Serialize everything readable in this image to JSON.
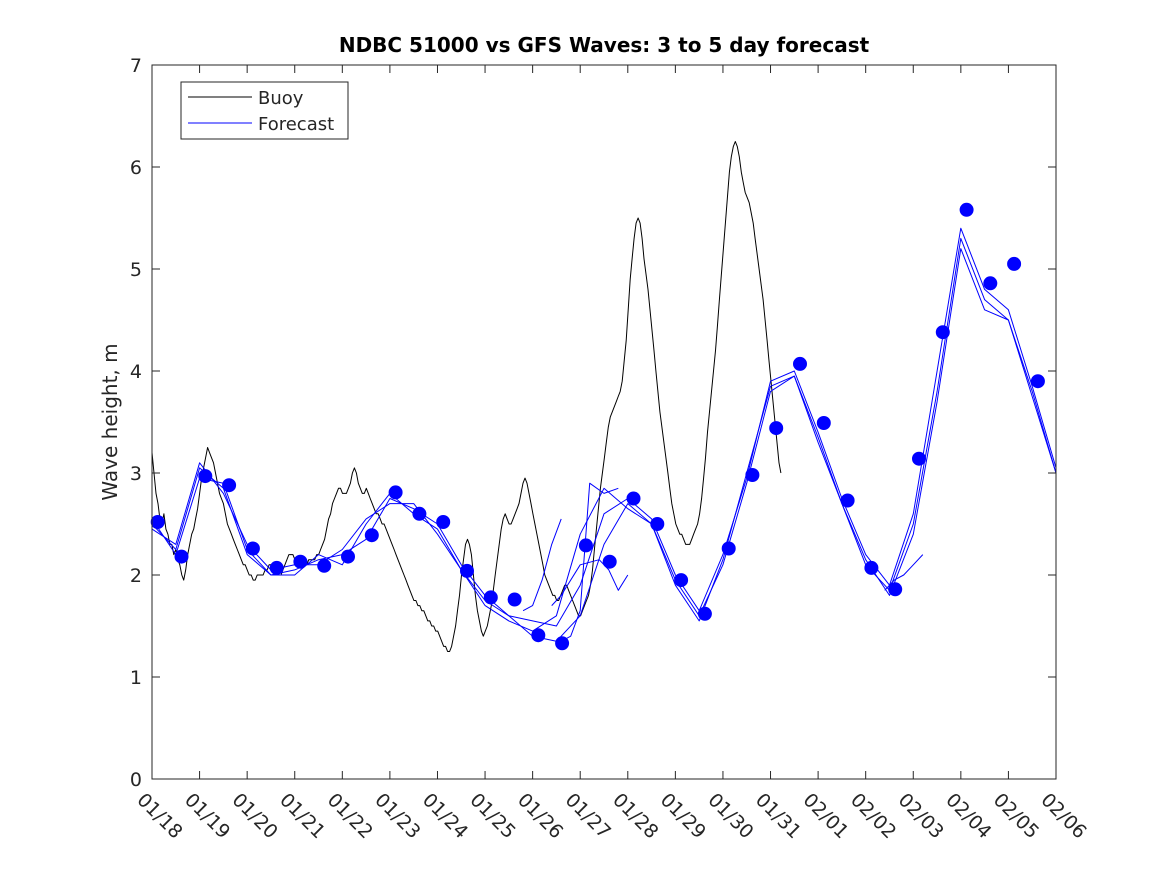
{
  "chart_data": {
    "type": "line",
    "title": "NDBC 51000 vs GFS Waves: 3 to 5 day forecast",
    "xlabel": "",
    "ylabel": "Wave height, m",
    "xlim": [
      0,
      19
    ],
    "ylim": [
      0,
      7
    ],
    "yticks": [
      0,
      1,
      2,
      3,
      4,
      5,
      6,
      7
    ],
    "xtick_labels": [
      "01/18",
      "01/19",
      "01/20",
      "01/21",
      "01/22",
      "01/23",
      "01/24",
      "01/25",
      "01/26",
      "01/27",
      "01/28",
      "01/29",
      "01/30",
      "01/31",
      "02/01",
      "02/02",
      "02/03",
      "02/04",
      "02/05",
      "02/06"
    ],
    "legend": {
      "position": "top-left",
      "entries": [
        "Buoy",
        "Forecast"
      ]
    },
    "colors": {
      "buoy": "#000000",
      "forecast": "#0000ff",
      "axis": "#262626"
    },
    "series": [
      {
        "name": "Buoy",
        "x_start": 0.0,
        "x_step": 0.0417,
        "values": [
          3.2,
          3.0,
          2.8,
          2.7,
          2.55,
          2.5,
          2.6,
          2.45,
          2.4,
          2.3,
          2.3,
          2.2,
          2.25,
          2.15,
          2.1,
          2.0,
          1.95,
          2.05,
          2.2,
          2.3,
          2.4,
          2.45,
          2.55,
          2.65,
          2.8,
          2.95,
          3.05,
          3.15,
          3.25,
          3.2,
          3.15,
          3.1,
          3.0,
          2.9,
          2.8,
          2.75,
          2.7,
          2.6,
          2.5,
          2.45,
          2.4,
          2.35,
          2.3,
          2.25,
          2.2,
          2.15,
          2.1,
          2.1,
          2.05,
          2.0,
          2.0,
          1.95,
          1.95,
          2.0,
          2.0,
          2.0,
          2.0,
          2.05,
          2.05,
          2.1,
          2.1,
          2.05,
          2.05,
          2.05,
          2.0,
          2.0,
          2.05,
          2.1,
          2.15,
          2.2,
          2.2,
          2.2,
          2.15,
          2.15,
          2.1,
          2.1,
          2.1,
          2.1,
          2.1,
          2.15,
          2.15,
          2.15,
          2.15,
          2.2,
          2.2,
          2.25,
          2.3,
          2.35,
          2.45,
          2.55,
          2.6,
          2.7,
          2.75,
          2.8,
          2.85,
          2.85,
          2.8,
          2.8,
          2.8,
          2.85,
          2.9,
          3.0,
          3.05,
          3.0,
          2.9,
          2.85,
          2.8,
          2.8,
          2.85,
          2.8,
          2.75,
          2.7,
          2.65,
          2.6,
          2.6,
          2.55,
          2.5,
          2.5,
          2.45,
          2.4,
          2.35,
          2.3,
          2.25,
          2.2,
          2.15,
          2.1,
          2.05,
          2.0,
          1.95,
          1.9,
          1.85,
          1.8,
          1.75,
          1.75,
          1.7,
          1.7,
          1.65,
          1.65,
          1.6,
          1.55,
          1.55,
          1.5,
          1.5,
          1.45,
          1.45,
          1.4,
          1.35,
          1.3,
          1.3,
          1.25,
          1.25,
          1.3,
          1.4,
          1.5,
          1.65,
          1.8,
          2.0,
          2.15,
          2.3,
          2.35,
          2.3,
          2.2,
          2.0,
          1.8,
          1.65,
          1.55,
          1.45,
          1.4,
          1.45,
          1.5,
          1.6,
          1.7,
          1.85,
          2.0,
          2.15,
          2.3,
          2.45,
          2.55,
          2.6,
          2.55,
          2.5,
          2.5,
          2.55,
          2.6,
          2.65,
          2.7,
          2.8,
          2.9,
          2.95,
          2.9,
          2.8,
          2.7,
          2.6,
          2.5,
          2.4,
          2.3,
          2.2,
          2.1,
          2.0,
          1.95,
          1.9,
          1.85,
          1.8,
          1.8,
          1.75,
          1.75,
          1.8,
          1.85,
          1.9,
          1.9,
          1.85,
          1.8,
          1.75,
          1.7,
          1.65,
          1.6,
          1.6,
          1.65,
          1.7,
          1.75,
          1.8,
          1.9,
          2.05,
          2.25,
          2.45,
          2.65,
          2.85,
          3.0,
          3.15,
          3.3,
          3.45,
          3.55,
          3.6,
          3.65,
          3.7,
          3.75,
          3.8,
          3.9,
          4.1,
          4.3,
          4.6,
          4.9,
          5.1,
          5.3,
          5.45,
          5.5,
          5.45,
          5.3,
          5.1,
          4.95,
          4.8,
          4.6,
          4.4,
          4.2,
          4.0,
          3.8,
          3.6,
          3.45,
          3.3,
          3.15,
          3.0,
          2.85,
          2.7,
          2.6,
          2.5,
          2.45,
          2.4,
          2.4,
          2.35,
          2.3,
          2.3,
          2.3,
          2.35,
          2.4,
          2.45,
          2.5,
          2.6,
          2.75,
          2.95,
          3.15,
          3.4,
          3.6,
          3.8,
          4.0,
          4.2,
          4.45,
          4.7,
          4.95,
          5.2,
          5.45,
          5.7,
          5.95,
          6.1,
          6.2,
          6.25,
          6.2,
          6.1,
          5.95,
          5.85,
          5.75,
          5.7,
          5.65,
          5.55,
          5.45,
          5.3,
          5.15,
          5.0,
          4.85,
          4.7,
          4.5,
          4.3,
          4.1,
          3.9,
          3.7,
          3.5,
          3.3,
          3.1,
          3.0
        ]
      },
      {
        "name": "Forecast",
        "x": [
          0.0,
          0.5,
          1.0,
          1.5,
          2.0,
          2.5,
          3.0,
          3.5,
          4.0,
          4.5,
          5.0,
          5.5,
          6.0,
          6.5,
          7.0,
          7.5,
          8.0,
          8.5,
          9.0,
          9.5,
          10.0,
          10.5,
          11.0,
          11.5,
          12.0,
          12.5,
          13.0,
          13.5,
          14.0,
          14.5,
          15.0,
          15.5,
          16.0,
          16.5,
          17.0,
          17.5,
          18.0,
          18.5,
          19.0
        ],
        "values": [
          2.55,
          2.2,
          2.95,
          2.9,
          2.25,
          2.0,
          2.05,
          2.15,
          2.2,
          2.35,
          2.75,
          2.65,
          2.5,
          2.1,
          1.8,
          1.6,
          1.4,
          1.35,
          1.6,
          2.3,
          2.7,
          2.5,
          1.95,
          1.6,
          2.1,
          2.9,
          3.8,
          3.95,
          3.3,
          2.7,
          2.1,
          1.85,
          2.5,
          3.8,
          5.3,
          4.7,
          4.5,
          3.8,
          3.0
        ]
      },
      {
        "name": "Forecast",
        "x": [
          0.0,
          0.5,
          1.0,
          1.5,
          2.0,
          2.5,
          3.0,
          3.5,
          4.0,
          4.5,
          5.0,
          5.5,
          6.0,
          6.5,
          7.0,
          7.5,
          8.0,
          8.5,
          9.0,
          9.5,
          10.0,
          10.5,
          11.0,
          11.5,
          12.0,
          12.5,
          13.0,
          13.5,
          14.0,
          14.5,
          15.0,
          15.5,
          16.0,
          16.5,
          17.0,
          17.5,
          18.0,
          18.5,
          19.0
        ],
        "values": [
          2.45,
          2.3,
          3.1,
          2.8,
          2.3,
          2.05,
          2.1,
          2.1,
          2.25,
          2.55,
          2.7,
          2.7,
          2.4,
          2.05,
          1.75,
          1.6,
          1.55,
          1.5,
          1.9,
          2.6,
          2.75,
          2.55,
          2.0,
          1.65,
          2.2,
          2.95,
          3.9,
          4.0,
          3.4,
          2.75,
          2.2,
          1.9,
          2.6,
          4.0,
          5.4,
          4.8,
          4.6,
          3.85,
          3.05
        ]
      },
      {
        "name": "Forecast",
        "x": [
          0.0,
          0.5,
          1.0,
          1.5,
          2.0,
          2.5,
          3.0,
          3.5,
          4.0,
          4.5,
          5.0,
          5.5,
          6.0,
          6.5,
          7.0,
          7.5,
          8.0,
          8.5,
          9.0,
          9.5,
          10.0,
          10.5,
          11.0,
          11.5,
          12.0,
          12.5,
          13.0,
          13.5,
          14.0,
          14.5,
          15.0,
          15.5,
          16.0,
          16.5,
          17.0,
          17.5,
          18.0,
          18.5,
          19.0
        ],
        "values": [
          2.5,
          2.25,
          3.05,
          2.85,
          2.2,
          2.0,
          2.0,
          2.2,
          2.1,
          2.5,
          2.8,
          2.6,
          2.45,
          2.05,
          1.7,
          1.55,
          1.45,
          1.6,
          2.4,
          2.85,
          2.65,
          2.5,
          1.9,
          1.55,
          2.15,
          3.0,
          3.85,
          3.95,
          3.35,
          2.7,
          2.15,
          1.8,
          2.4,
          3.7,
          5.2,
          4.6,
          4.5,
          3.75,
          3.0
        ]
      },
      {
        "name": "Forecast",
        "x": [
          8.4,
          8.6,
          9.0,
          9.4,
          9.6,
          9.8,
          10.0
        ],
        "values": [
          1.7,
          1.8,
          2.1,
          2.15,
          2.05,
          1.85,
          2.0
        ]
      },
      {
        "name": "Forecast",
        "x": [
          8.6,
          8.8,
          9.0,
          9.2,
          9.5,
          9.8
        ],
        "values": [
          1.35,
          1.4,
          1.65,
          2.9,
          2.8,
          2.85
        ]
      },
      {
        "name": "Forecast",
        "x": [
          15.4,
          15.6,
          15.8,
          16.0,
          16.2
        ],
        "values": [
          1.85,
          1.95,
          2.0,
          2.1,
          2.2
        ]
      },
      {
        "name": "Forecast",
        "x": [
          7.8,
          8.0,
          8.2,
          8.4,
          8.6
        ],
        "values": [
          1.65,
          1.7,
          1.95,
          2.3,
          2.55
        ]
      }
    ],
    "markers": {
      "name": "Forecast",
      "x": [
        0.12,
        0.62,
        1.12,
        1.62,
        2.12,
        2.62,
        3.12,
        3.62,
        4.12,
        4.62,
        5.12,
        5.62,
        6.12,
        6.62,
        7.12,
        7.62,
        8.12,
        8.62,
        9.12,
        9.62,
        10.12,
        10.62,
        11.12,
        11.62,
        12.12,
        12.62,
        13.12,
        13.62,
        14.12,
        14.62,
        15.12,
        15.62,
        16.12,
        16.62,
        17.12,
        17.62,
        18.12,
        18.62
      ],
      "values": [
        2.52,
        2.18,
        2.97,
        2.88,
        2.26,
        2.07,
        2.13,
        2.09,
        2.18,
        2.39,
        2.81,
        2.6,
        2.52,
        2.04,
        1.78,
        1.76,
        1.41,
        1.33,
        2.29,
        2.13,
        2.75,
        2.5,
        1.95,
        1.62,
        2.26,
        2.98,
        3.44,
        4.07,
        3.49,
        2.73,
        2.07,
        1.86,
        3.14,
        4.38,
        5.58,
        4.86,
        5.05,
        3.9
      ]
    }
  }
}
